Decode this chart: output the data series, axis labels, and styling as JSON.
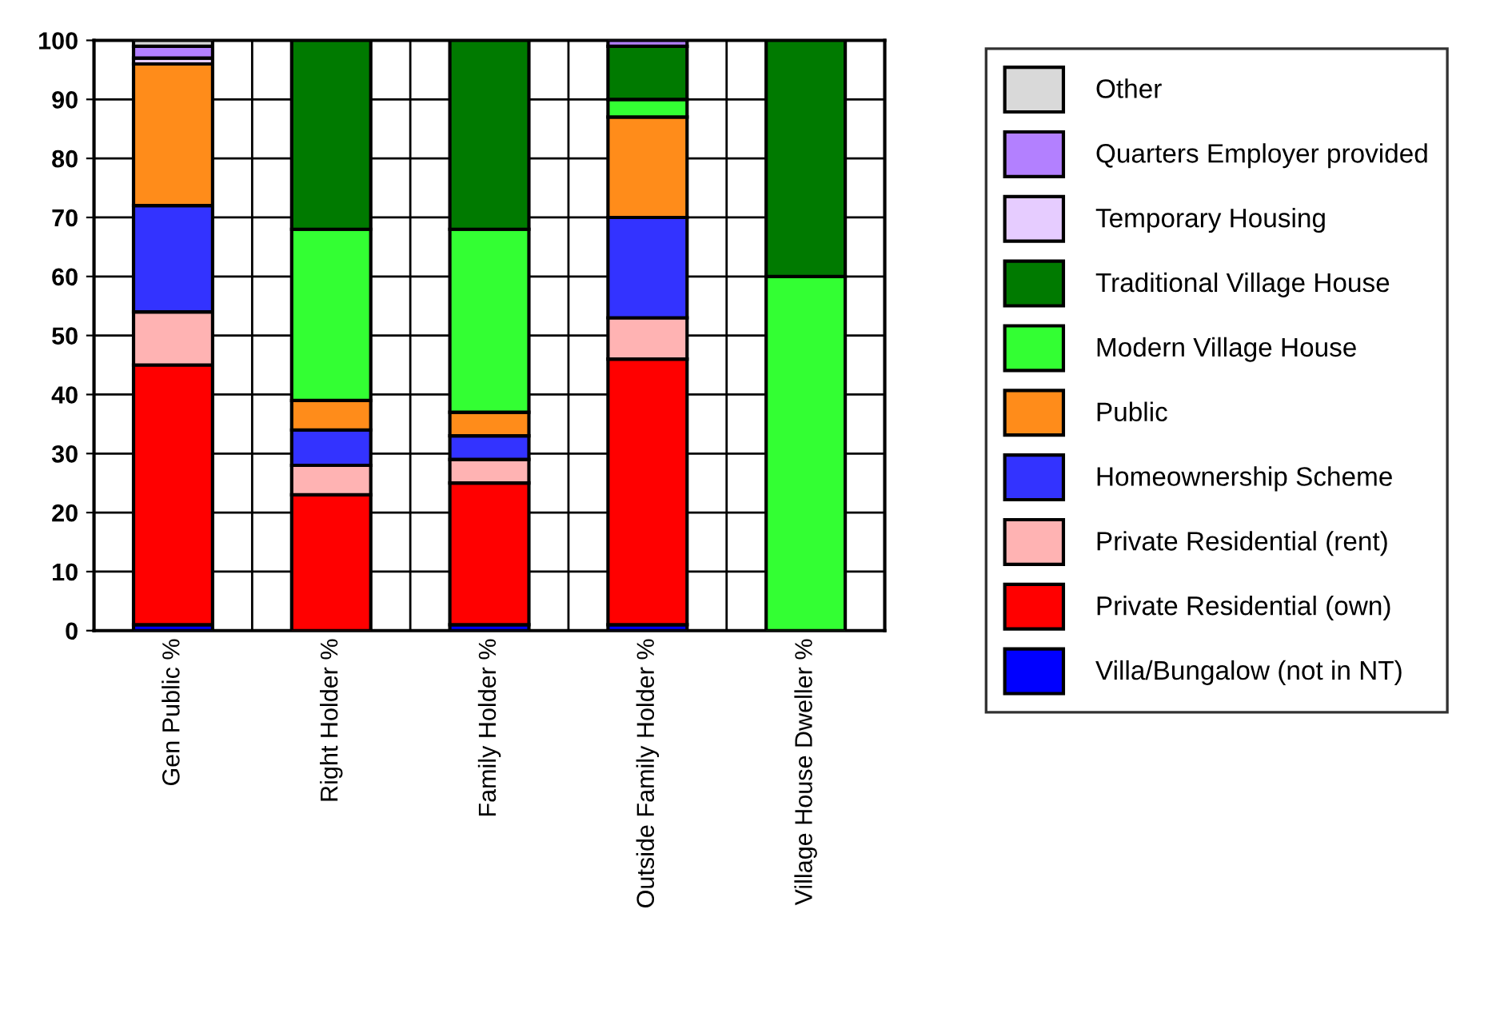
{
  "chart_data": {
    "type": "bar",
    "stacked": true,
    "categories": [
      "Gen Public %",
      "Right Holder %",
      "Family Holder %",
      "Outside Family Holder %",
      "Village House Dweller %"
    ],
    "series": [
      {
        "name": "Villa/Bungalow (not in NT)",
        "color": "#0000ff",
        "values": [
          1,
          0,
          1,
          1,
          0
        ]
      },
      {
        "name": "Private Residential (own)",
        "color": "#ff0000",
        "values": [
          44,
          23,
          24,
          45,
          0
        ]
      },
      {
        "name": "Private Residential (rent)",
        "color": "#ffb3b3",
        "values": [
          9,
          5,
          4,
          7,
          0
        ]
      },
      {
        "name": "Homeownership Scheme",
        "color": "#3333ff",
        "values": [
          18,
          6,
          4,
          17,
          0
        ]
      },
      {
        "name": "Public",
        "color": "#ff8c1a",
        "values": [
          24,
          5,
          4,
          17,
          0
        ]
      },
      {
        "name": "Modern Village House",
        "color": "#33ff33",
        "values": [
          0,
          29,
          31,
          3,
          60
        ]
      },
      {
        "name": "Traditional Village House",
        "color": "#007a00",
        "values": [
          0,
          32,
          32,
          9,
          40
        ]
      },
      {
        "name": "Temporary Housing",
        "color": "#e6ccff",
        "values": [
          1,
          0,
          0,
          0,
          0
        ]
      },
      {
        "name": "Quarters Employer provided",
        "color": "#b380ff",
        "values": [
          2,
          0,
          0,
          1,
          0
        ]
      },
      {
        "name": "Other",
        "color": "#d9d9d9",
        "values": [
          1,
          0,
          0,
          0,
          0
        ]
      }
    ],
    "ylim": [
      0,
      100
    ],
    "yticks": [
      0,
      10,
      20,
      30,
      40,
      50,
      60,
      70,
      80,
      90,
      100
    ],
    "grid": true,
    "legend": "right"
  }
}
